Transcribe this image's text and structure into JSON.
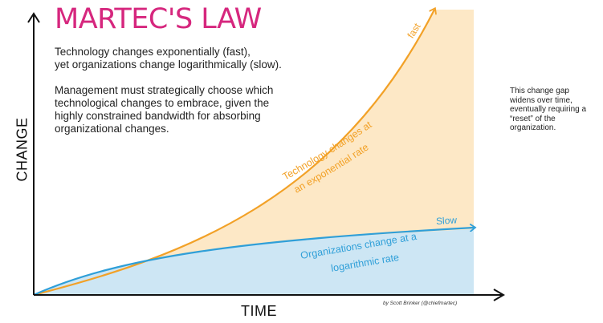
{
  "title": "MARTEC'S LAW",
  "intro": {
    "line1": "Technology changes exponentially (fast),",
    "line2": "yet organizations change logarithmically (slow).",
    "para2_line1": "Management must strategically choose which",
    "para2_line2": "technological changes to embrace, given the",
    "para2_line3": "highly constrained bandwidth for absorbing",
    "para2_line4": "organizational changes."
  },
  "side_note": "This change gap widens over time, eventually requiring a “reset” of the organization.",
  "axes": {
    "y_label": "CHANGE",
    "x_label": "TIME"
  },
  "curves": {
    "technology": {
      "end_label": "fast",
      "label_line1": "Technology changes at",
      "label_line2": "an exponential rate"
    },
    "organizations": {
      "end_label": "Slow",
      "label_line1": "Organizations change at a",
      "label_line2": "logarithmic rate"
    }
  },
  "credit": "by Scott Brinker (@chiefmartec)",
  "colors": {
    "title": "#d6277e",
    "tech_curve": "#f2a127",
    "tech_fill": "#fde8c6",
    "org_curve": "#2f9fd8",
    "org_fill": "#cde6f4",
    "axis": "#111111"
  }
}
